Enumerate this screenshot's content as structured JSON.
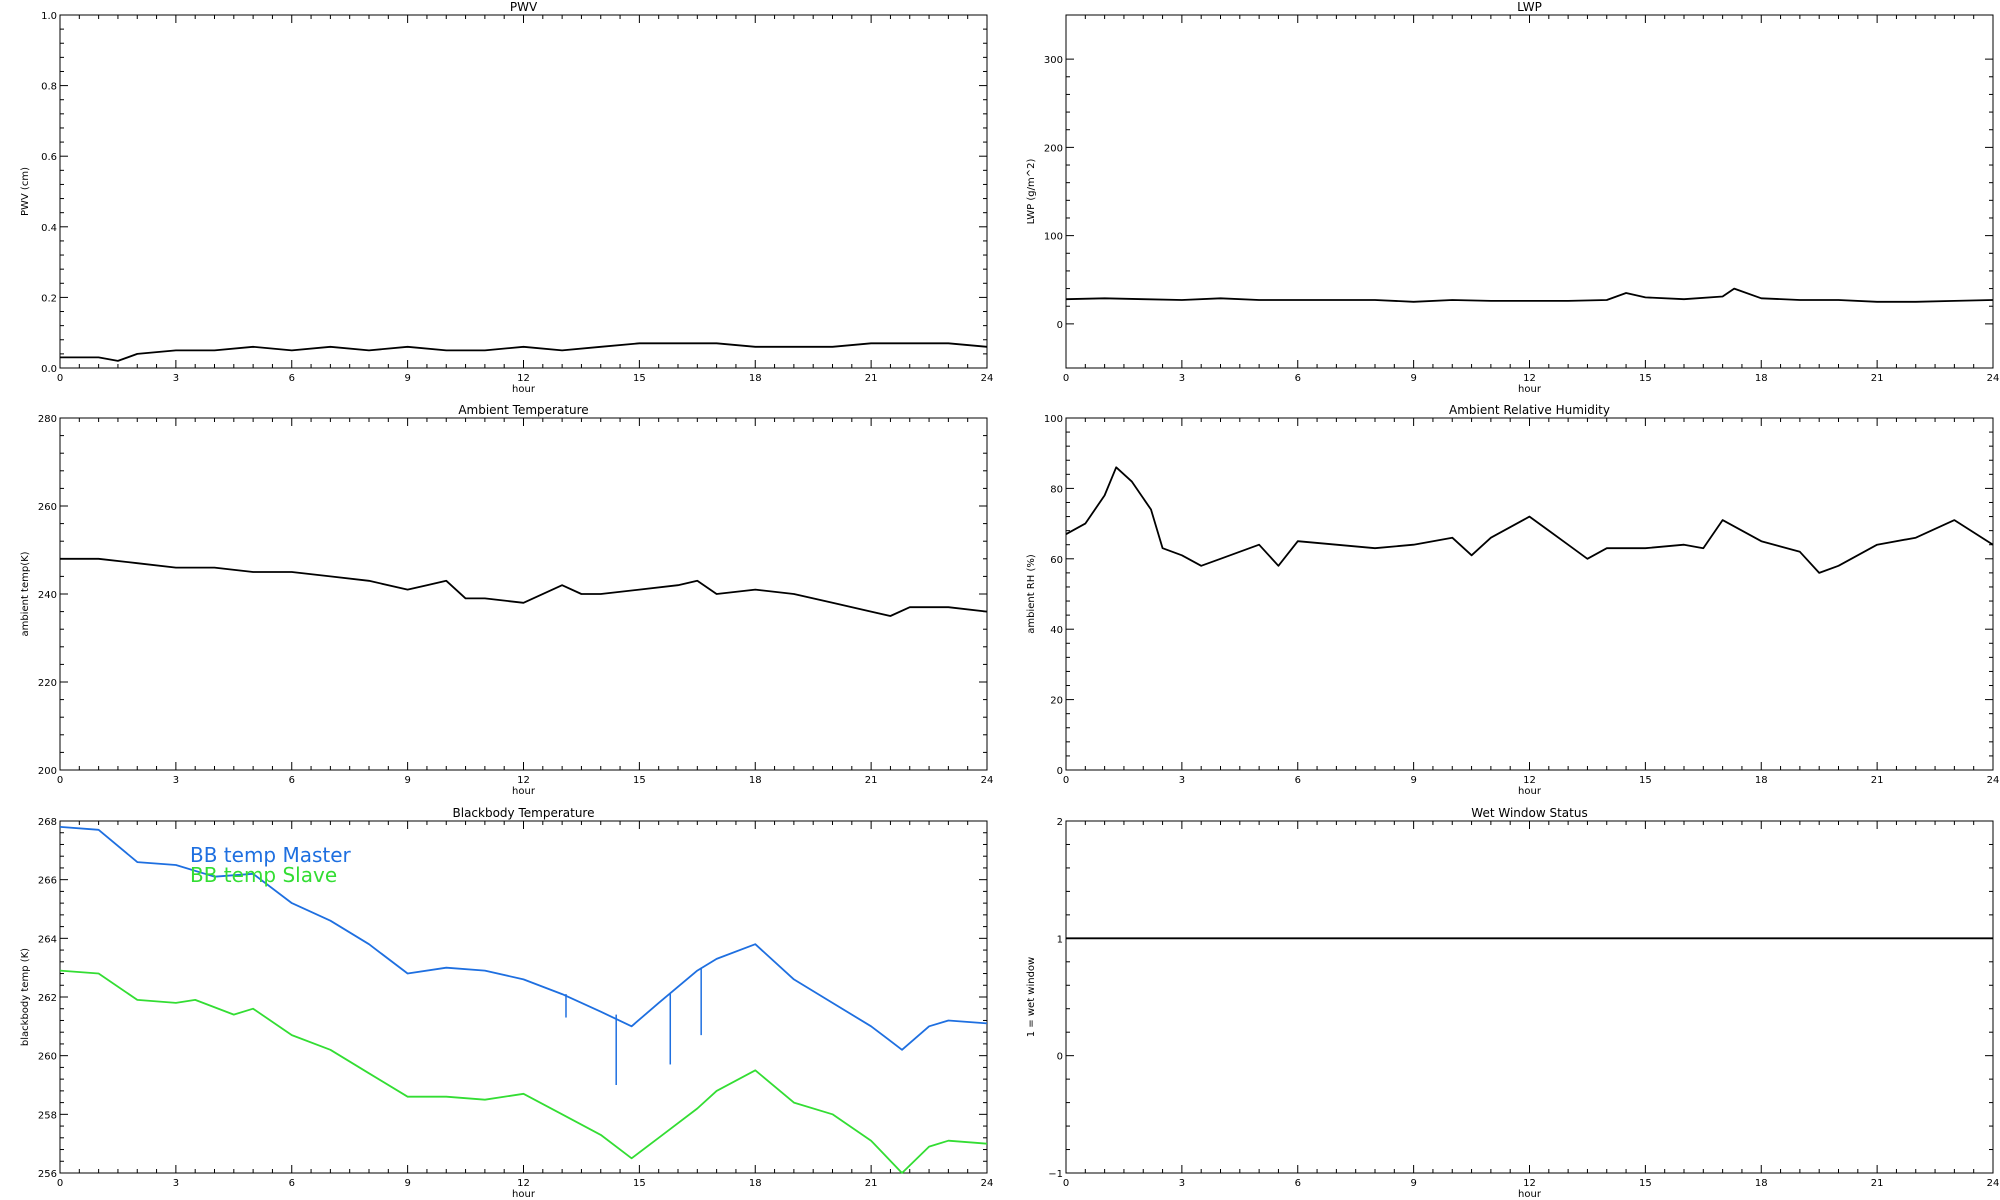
{
  "chart_data": [
    {
      "type": "line",
      "title": "PWV",
      "xlabel": "hour",
      "ylabel": "PWV (cm)",
      "xlim": [
        0,
        24
      ],
      "ylim": [
        0,
        1
      ],
      "xticks": [
        0,
        3,
        6,
        9,
        12,
        15,
        18,
        21,
        24
      ],
      "yticks": [
        "0.0",
        "0.2",
        "0.4",
        "0.6",
        "0.8",
        "1.0"
      ],
      "yticks_values": [
        0,
        0.2,
        0.4,
        0.6,
        0.8,
        1.0
      ],
      "grid": false,
      "series": [
        {
          "color": "#000000",
          "x": [
            0,
            1,
            1.5,
            2,
            3,
            4,
            5,
            6,
            7,
            8,
            9,
            10,
            11,
            12,
            13,
            14,
            15,
            16,
            17,
            18,
            19,
            20,
            21,
            22,
            23,
            24
          ],
          "y": [
            0.03,
            0.03,
            0.02,
            0.04,
            0.05,
            0.05,
            0.06,
            0.05,
            0.06,
            0.05,
            0.06,
            0.05,
            0.05,
            0.06,
            0.05,
            0.06,
            0.07,
            0.07,
            0.07,
            0.06,
            0.06,
            0.06,
            0.07,
            0.07,
            0.07,
            0.06
          ]
        }
      ]
    },
    {
      "type": "line",
      "title": "LWP",
      "xlabel": "hour",
      "ylabel": "LWP (g/m^2)",
      "xlim": [
        0,
        24
      ],
      "ylim": [
        -50,
        350
      ],
      "xticks": [
        0,
        3,
        6,
        9,
        12,
        15,
        18,
        21,
        24
      ],
      "yticks": [
        "0",
        "100",
        "200",
        "300"
      ],
      "yticks_values": [
        0,
        100,
        200,
        300
      ],
      "grid": false,
      "series": [
        {
          "color": "#000000",
          "x": [
            0,
            1,
            2,
            3,
            4,
            5,
            6,
            7,
            8,
            9,
            10,
            11,
            12,
            13,
            14,
            14.5,
            15,
            16,
            17,
            17.3,
            18,
            19,
            20,
            21,
            22,
            23,
            24
          ],
          "y": [
            28,
            29,
            28,
            27,
            29,
            27,
            27,
            27,
            27,
            25,
            27,
            26,
            26,
            26,
            27,
            35,
            30,
            28,
            31,
            40,
            29,
            27,
            27,
            25,
            25,
            26,
            27
          ]
        }
      ]
    },
    {
      "type": "line",
      "title": "Ambient Temperature",
      "xlabel": "hour",
      "ylabel": "ambient temp(K)",
      "xlim": [
        0,
        24
      ],
      "ylim": [
        200,
        280
      ],
      "xticks": [
        0,
        3,
        6,
        9,
        12,
        15,
        18,
        21,
        24
      ],
      "yticks": [
        "200",
        "220",
        "240",
        "260",
        "280"
      ],
      "yticks_values": [
        200,
        220,
        240,
        260,
        280
      ],
      "grid": false,
      "series": [
        {
          "color": "#000000",
          "x": [
            0,
            0.5,
            1,
            2,
            3,
            4,
            5,
            6,
            7,
            8,
            9,
            9.5,
            10,
            10.5,
            11,
            12,
            13,
            13.5,
            14,
            15,
            16,
            16.5,
            17,
            18,
            19,
            20,
            21,
            21.5,
            22,
            23,
            24
          ],
          "y": [
            248,
            248,
            248,
            247,
            246,
            246,
            245,
            245,
            244,
            243,
            241,
            242,
            243,
            239,
            239,
            238,
            242,
            240,
            240,
            241,
            242,
            243,
            240,
            241,
            240,
            238,
            236,
            235,
            237,
            237,
            236
          ]
        }
      ]
    },
    {
      "type": "line",
      "title": "Ambient Relative Humidity",
      "xlabel": "hour",
      "ylabel": "ambient RH (%)",
      "xlim": [
        0,
        24
      ],
      "ylim": [
        0,
        100
      ],
      "xticks": [
        0,
        3,
        6,
        9,
        12,
        15,
        18,
        21,
        24
      ],
      "yticks": [
        "0",
        "20",
        "40",
        "60",
        "80",
        "100"
      ],
      "yticks_values": [
        0,
        20,
        40,
        60,
        80,
        100
      ],
      "grid": false,
      "series": [
        {
          "color": "#000000",
          "x": [
            0,
            0.5,
            1,
            1.3,
            1.7,
            2.2,
            2.5,
            3,
            3.5,
            4,
            5,
            5.5,
            6,
            7,
            8,
            9,
            10,
            10.5,
            11,
            12,
            12.5,
            13,
            13.5,
            14,
            15,
            16,
            16.5,
            17,
            18,
            19,
            19.5,
            20,
            21,
            22,
            23,
            24
          ],
          "y": [
            67,
            70,
            78,
            86,
            82,
            74,
            63,
            61,
            58,
            60,
            64,
            58,
            65,
            64,
            63,
            64,
            66,
            61,
            66,
            72,
            68,
            64,
            60,
            63,
            63,
            64,
            63,
            71,
            65,
            62,
            56,
            58,
            64,
            66,
            71,
            64
          ]
        }
      ]
    },
    {
      "type": "line",
      "title": "Blackbody Temperature",
      "xlabel": "hour",
      "ylabel": "blackbody temp (K)",
      "xlim": [
        0,
        24
      ],
      "ylim": [
        256,
        268
      ],
      "xticks": [
        0,
        3,
        6,
        9,
        12,
        15,
        18,
        21,
        24
      ],
      "yticks": [
        "256",
        "258",
        "260",
        "262",
        "264",
        "266",
        "268"
      ],
      "yticks_values": [
        256,
        258,
        260,
        262,
        264,
        266,
        268
      ],
      "grid": false,
      "legend": "top-left",
      "series": [
        {
          "name": "BB temp Master",
          "color": "#1e6fe0",
          "x": [
            0,
            1,
            2,
            3,
            4,
            5,
            6,
            7,
            8,
            9,
            10,
            11,
            12,
            13,
            14,
            14.8,
            15.5,
            16.5,
            17,
            18,
            19,
            20,
            21,
            21.8,
            22.5,
            23,
            24
          ],
          "y": [
            267.8,
            267.7,
            266.6,
            266.5,
            266.1,
            266.2,
            265.2,
            264.6,
            263.8,
            262.8,
            263.0,
            262.9,
            262.6,
            262.1,
            261.5,
            261.0,
            261.8,
            262.9,
            263.3,
            263.8,
            262.6,
            261.8,
            261.0,
            260.2,
            261.0,
            261.2,
            261.1
          ]
        },
        {
          "name": "BB temp Slave",
          "color": "#33dd33",
          "x": [
            0,
            1,
            2,
            3,
            3.5,
            4.5,
            5,
            6,
            7,
            8,
            9,
            10,
            11,
            12,
            13,
            14,
            14.8,
            15.5,
            16.5,
            17,
            18,
            19,
            20,
            21,
            21.8,
            22.5,
            23,
            24
          ],
          "y": [
            262.9,
            262.8,
            261.9,
            261.8,
            261.9,
            261.4,
            261.6,
            260.7,
            260.2,
            259.4,
            258.6,
            258.6,
            258.5,
            258.7,
            258.0,
            257.3,
            256.5,
            257.2,
            258.2,
            258.8,
            259.5,
            258.4,
            258.0,
            257.1,
            256.0,
            256.9,
            257.1,
            257.0
          ]
        }
      ],
      "spikes": [
        {
          "x": 13.1,
          "y_top": 262.1,
          "y_bottom": 261.3
        },
        {
          "x": 14.4,
          "y_top": 261.4,
          "y_bottom": 259.0
        },
        {
          "x": 15.8,
          "y_top": 262.1,
          "y_bottom": 259.7
        },
        {
          "x": 16.6,
          "y_top": 263.0,
          "y_bottom": 260.7
        }
      ]
    },
    {
      "type": "line",
      "title": "Wet Window Status",
      "xlabel": "hour",
      "ylabel": "1 = wet window",
      "xlim": [
        0,
        24
      ],
      "ylim": [
        -1,
        2
      ],
      "xticks": [
        0,
        3,
        6,
        9,
        12,
        15,
        18,
        21,
        24
      ],
      "yticks": [
        "−1",
        "0",
        "1",
        "2"
      ],
      "yticks_values": [
        -1,
        0,
        1,
        2
      ],
      "grid": false,
      "series": [
        {
          "color": "#000000",
          "x": [
            0,
            24
          ],
          "y": [
            1,
            1
          ]
        }
      ]
    }
  ]
}
